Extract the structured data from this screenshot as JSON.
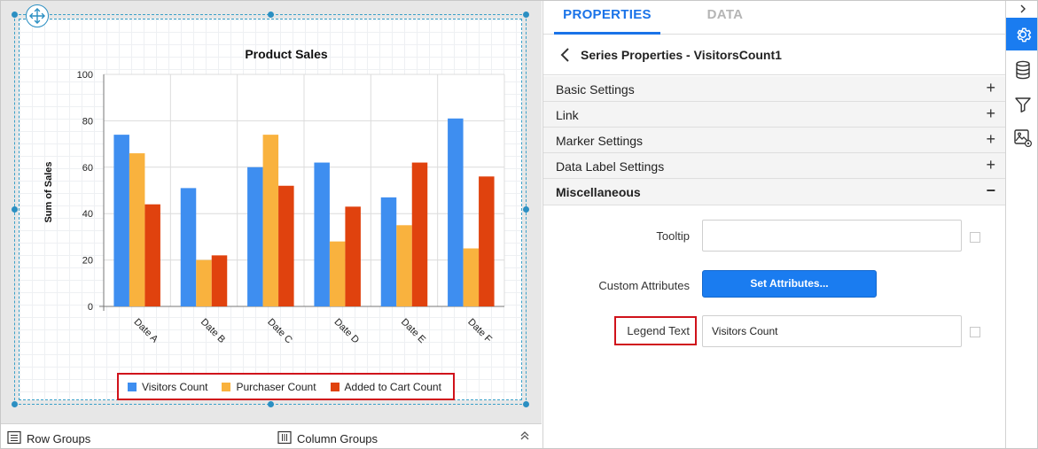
{
  "chart": {
    "title": "Product Sales",
    "y_axis_label": "Sum of Sales",
    "legend": [
      {
        "label": "Visitors Count",
        "color": "#3e8ef0"
      },
      {
        "label": "Purchaser Count",
        "color": "#f9b23e"
      },
      {
        "label": "Added to Cart Count",
        "color": "#e0420e"
      }
    ]
  },
  "chart_data": {
    "type": "bar",
    "title": "Product Sales",
    "xlabel": "",
    "ylabel": "Sum of Sales",
    "categories": [
      "Date A",
      "Date B",
      "Date C",
      "Date D",
      "Date E",
      "Date F"
    ],
    "ylim": [
      0,
      100
    ],
    "yticks": [
      0,
      20,
      40,
      60,
      80,
      100
    ],
    "grid": true,
    "legend_position": "bottom",
    "series": [
      {
        "name": "Visitors Count",
        "color": "#3e8ef0",
        "values": [
          74,
          51,
          60,
          62,
          47,
          81
        ]
      },
      {
        "name": "Purchaser Count",
        "color": "#f9b23e",
        "values": [
          66,
          20,
          74,
          28,
          35,
          25
        ]
      },
      {
        "name": "Added to Cart Count",
        "color": "#e0420e",
        "values": [
          44,
          22,
          52,
          43,
          62,
          56
        ]
      }
    ]
  },
  "bottom_bar": {
    "row_groups": "Row Groups",
    "column_groups": "Column Groups"
  },
  "properties": {
    "tabs": [
      "PROPERTIES",
      "DATA"
    ],
    "series_title": "Series Properties - VisitorsCount1",
    "sections": [
      {
        "label": "Basic Settings",
        "toggle": "+"
      },
      {
        "label": "Link",
        "toggle": "+"
      },
      {
        "label": "Marker Settings",
        "toggle": "+"
      },
      {
        "label": "Data Label Settings",
        "toggle": "+"
      },
      {
        "label": "Miscellaneous",
        "toggle": "−"
      }
    ],
    "tooltip_label": "Tooltip",
    "tooltip_value": "",
    "custom_attributes_label": "Custom Attributes",
    "set_attributes_button": "Set Attributes...",
    "legend_text_label": "Legend Text",
    "legend_text_value": "Visitors Count"
  },
  "side_strip": {
    "icons": [
      "settings-icon",
      "database-icon",
      "filter-icon",
      "image-settings-icon"
    ]
  },
  "colors": {
    "accent": "#1a73e8",
    "selection": "#2b8fc2",
    "highlight_border": "#d0121b"
  }
}
